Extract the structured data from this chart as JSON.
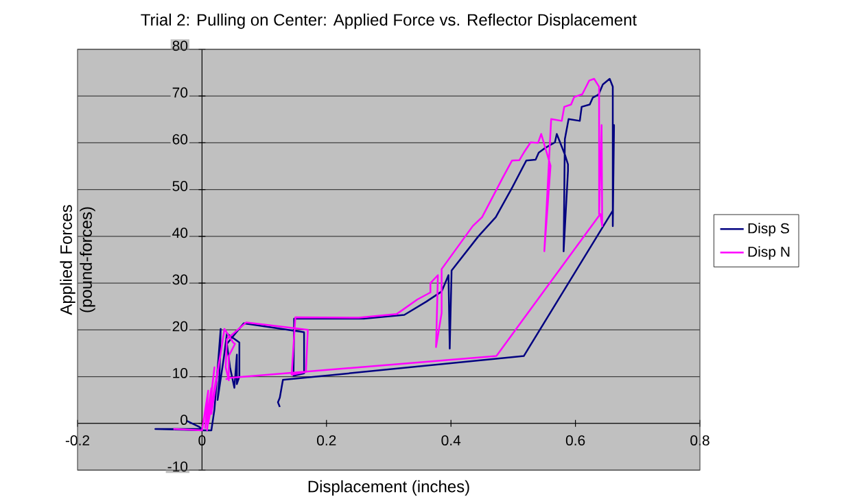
{
  "chart_data": {
    "type": "line",
    "title": "Trial 2: Pulling on Center: Applied Force vs. Reflector Displacement",
    "xlabel": "Displacement (inches)",
    "ylabel": "Applied Forces (pound-forces)",
    "xlim": [
      -0.2,
      0.8
    ],
    "ylim": [
      -10,
      80
    ],
    "xticks": [
      -0.2,
      0,
      0.2,
      0.4,
      0.6,
      0.8
    ],
    "yticks": [
      -10,
      0,
      10,
      20,
      30,
      40,
      50,
      60,
      70,
      80
    ],
    "grid": "y",
    "legend": "right",
    "marker": "none",
    "line_style": "solid",
    "series": [
      {
        "name": "Disp S",
        "color": "#000080",
        "x": [
          -0.024,
          -0.005,
          0.0,
          -0.075,
          0.005,
          0.015,
          0.02,
          0.03,
          0.028,
          0.025,
          0.035,
          0.04,
          0.06,
          0.06,
          0.056,
          0.056,
          0.052,
          0.045,
          0.04,
          0.067,
          0.164,
          0.164,
          0.147,
          0.148,
          0.26,
          0.325,
          0.36,
          0.385,
          0.396,
          0.398,
          0.401,
          0.444,
          0.472,
          0.499,
          0.521,
          0.536,
          0.541,
          0.55,
          0.567,
          0.57,
          0.583,
          0.588,
          0.588,
          0.581,
          0.583,
          0.589,
          0.607,
          0.61,
          0.623,
          0.628,
          0.637,
          0.644,
          0.655,
          0.66,
          0.66,
          0.662,
          0.66,
          0.517,
          0.13,
          0.125,
          0.122,
          0.125
        ],
        "values": [
          0.5,
          -0.7,
          -1.2,
          -1.2,
          -1.5,
          -1.5,
          3,
          20.2,
          10,
          5,
          14,
          19.2,
          17.3,
          10,
          8.4,
          14.7,
          7.6,
          12,
          17,
          21.4,
          19.5,
          10.7,
          10.2,
          22.4,
          22.4,
          23.2,
          26,
          28.2,
          31.7,
          16,
          32.7,
          40,
          44.1,
          50.6,
          56.2,
          56.4,
          57.9,
          58.8,
          60.1,
          61.9,
          57.5,
          55.4,
          54,
          36.8,
          60.8,
          65.1,
          64.7,
          67.7,
          68.2,
          69.7,
          70.3,
          72.5,
          73.7,
          72,
          42.2,
          63.8,
          45.5,
          14.4,
          9.3,
          5.5,
          4.5,
          3.5
        ]
      },
      {
        "name": "Disp N",
        "color": "#ff00ff",
        "x": [
          -0.046,
          0.0,
          0.01,
          0.005,
          0.015,
          0.008,
          0.02,
          0.01,
          0.03,
          0.015,
          0.036,
          0.05,
          0.053,
          0.043,
          0.043,
          0.038,
          0.04,
          0.071,
          0.17,
          0.167,
          0.144,
          0.15,
          0.252,
          0.313,
          0.346,
          0.367,
          0.367,
          0.379,
          0.376,
          0.385,
          0.385,
          0.435,
          0.45,
          0.483,
          0.498,
          0.51,
          0.517,
          0.528,
          0.54,
          0.545,
          0.56,
          0.55,
          0.561,
          0.578,
          0.582,
          0.593,
          0.598,
          0.611,
          0.622,
          0.63,
          0.638,
          0.638,
          0.642,
          0.643,
          0.64,
          0.473,
          0.043,
          0.038
        ],
        "values": [
          -1.2,
          -1.5,
          7,
          -1,
          7.5,
          -1.5,
          12,
          0,
          15,
          2,
          20.2,
          17.3,
          17,
          14.4,
          9.2,
          12,
          18,
          21.6,
          20,
          11,
          10.4,
          22.7,
          22.6,
          23.4,
          26.5,
          28,
          30,
          31.7,
          16.3,
          23.6,
          33,
          42.2,
          44.1,
          52.5,
          56.2,
          56.3,
          57.9,
          60.1,
          60,
          61.9,
          55.1,
          36.8,
          65.1,
          64.7,
          67.7,
          68.2,
          69.8,
          70.4,
          73.3,
          73.7,
          72,
          44.7,
          63.8,
          42.2,
          44.8,
          14.4,
          9.7,
          9.4
        ]
      }
    ]
  }
}
